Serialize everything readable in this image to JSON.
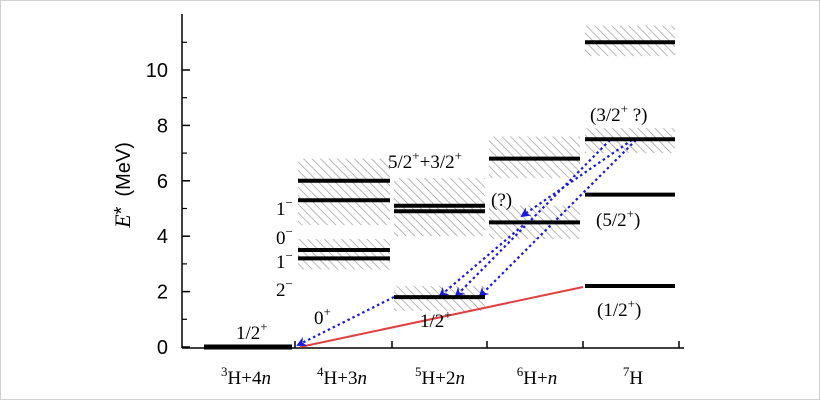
{
  "diagram": {
    "y_axis": {
      "title_var": "E",
      "title_star": "*",
      "title_unit": "(MeV)",
      "range": [
        0,
        12
      ],
      "ticks": [
        0,
        2,
        4,
        6,
        8,
        10
      ]
    },
    "columns": [
      {
        "id": "3H",
        "sup": "3",
        "base": "H+4",
        "n": "n"
      },
      {
        "id": "4H",
        "sup": "4",
        "base": "H+3",
        "n": "n"
      },
      {
        "id": "5H",
        "sup": "5",
        "base": "H+2",
        "n": "n"
      },
      {
        "id": "6H",
        "sup": "6",
        "base": "H+",
        "n": "n"
      },
      {
        "id": "7H",
        "sup": "7",
        "base": "H",
        "n": ""
      }
    ],
    "levels": [
      {
        "col": 0,
        "energy": 0.0,
        "band": [
          0.0,
          0.0
        ]
      },
      {
        "col": 1,
        "energy": 3.2,
        "band": [
          2.8,
          3.6
        ]
      },
      {
        "col": 1,
        "energy": 3.5,
        "band": [
          3.0,
          3.9
        ]
      },
      {
        "col": 1,
        "energy": 5.3,
        "band": [
          4.4,
          6.1
        ]
      },
      {
        "col": 1,
        "energy": 6.0,
        "band": [
          5.4,
          6.8
        ]
      },
      {
        "col": 2,
        "energy": 1.8,
        "band": [
          1.3,
          2.2
        ]
      },
      {
        "col": 2,
        "energy": 4.9,
        "band": [
          4.0,
          5.9
        ]
      },
      {
        "col": 2,
        "energy": 5.1,
        "band": [
          4.4,
          6.1
        ]
      },
      {
        "col": 3,
        "energy": 4.5,
        "band": [
          3.9,
          5.1
        ]
      },
      {
        "col": 3,
        "energy": 6.8,
        "band": [
          6.1,
          7.6
        ]
      },
      {
        "col": 4,
        "energy": 2.2,
        "band": [
          2.2,
          2.2
        ]
      },
      {
        "col": 4,
        "energy": 5.5,
        "band": [
          5.5,
          5.5
        ]
      },
      {
        "col": 4,
        "energy": 7.5,
        "band": [
          7.0,
          7.9
        ]
      },
      {
        "col": 4,
        "energy": 11.0,
        "band": [
          10.5,
          11.6
        ]
      }
    ],
    "labels": {
      "l_3h": "1/2",
      "l_3h_sup": "+",
      "l_0plus": "0",
      "l_0plus_sup": "+",
      "l_1m_top": "1",
      "l_1m_top_sup": "−",
      "l_0m": "0",
      "l_0m_sup": "−",
      "l_1m": "1",
      "l_1m_sup": "−",
      "l_2m": "2",
      "l_2m_sup": "−",
      "l_5h_ground": "1/2",
      "l_5h_ground_sup": "+",
      "l_5h_excited_a": "5/2",
      "l_5h_excited_a_sup": "+",
      "l_5h_excited_b": "+3/2",
      "l_5h_excited_b_sup": "+",
      "l_6h_q": "(?)",
      "l_7h_32": "(3/2",
      "l_7h_32_sup": "+",
      "l_7h_32_end": " ?)",
      "l_7h_52": "(5/2",
      "l_7h_52_sup": "+",
      "l_7h_52_end": ")",
      "l_7h_12": "(1/2",
      "l_7h_12_sup": "+",
      "l_7h_12_end": ")"
    },
    "colors": {
      "level": "#000000",
      "hatch": "#9a9a9a",
      "decay_arrow": "#1a1adb",
      "red_line": "#e04040"
    }
  }
}
